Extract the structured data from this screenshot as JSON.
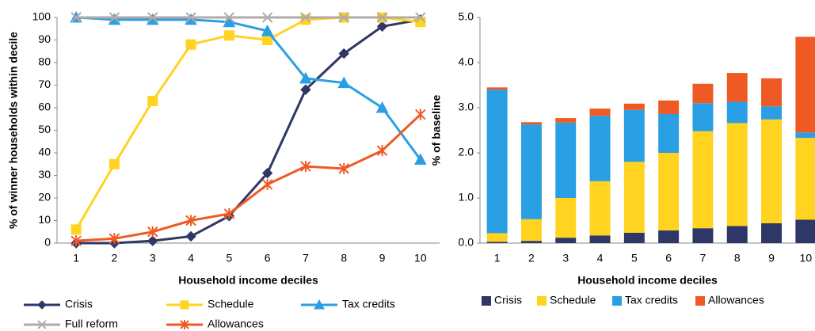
{
  "chart_data": [
    {
      "type": "line",
      "x_label": "Household income deciles",
      "y_label": "% of winner households within decile",
      "categories": [
        "1",
        "2",
        "3",
        "4",
        "5",
        "6",
        "7",
        "8",
        "9",
        "10"
      ],
      "ylim": [
        0,
        100
      ],
      "yticks": [
        0,
        10,
        20,
        30,
        40,
        50,
        60,
        70,
        80,
        90,
        100
      ],
      "grid": false,
      "series": [
        {
          "name": "Crisis",
          "color": "#2e3766",
          "marker": "diamond",
          "values": [
            0,
            0,
            1,
            3,
            12,
            31,
            68,
            84,
            96,
            99
          ]
        },
        {
          "name": "Schedule",
          "color": "#ffd320",
          "marker": "square",
          "values": [
            6,
            35,
            63,
            88,
            92,
            90,
            99,
            100,
            100,
            98
          ]
        },
        {
          "name": "Tax credits",
          "color": "#2a9fe3",
          "marker": "triangle",
          "values": [
            100,
            99,
            99,
            99,
            98,
            94,
            73,
            71,
            60,
            37
          ]
        },
        {
          "name": "Full reform",
          "color": "#b3aaaa",
          "marker": "x",
          "values": [
            100,
            100,
            100,
            100,
            100,
            100,
            100,
            100,
            100,
            100
          ]
        },
        {
          "name": "Allowances",
          "color": "#ef5a24",
          "marker": "star",
          "values": [
            1,
            2,
            5,
            10,
            13,
            26,
            34,
            33,
            41,
            57
          ]
        }
      ]
    },
    {
      "type": "stacked_bar",
      "x_label": "Household income deciles",
      "y_label": "% of baseline",
      "categories": [
        "1",
        "2",
        "3",
        "4",
        "5",
        "6",
        "7",
        "8",
        "9",
        "10"
      ],
      "ylim": [
        0,
        5
      ],
      "yticks": [
        {
          "value": 0,
          "label": "0.0"
        },
        {
          "value": 1,
          "label": "1.0"
        },
        {
          "value": 2,
          "label": "2.0"
        },
        {
          "value": 3,
          "label": "3.0"
        },
        {
          "value": 4,
          "label": "4.0"
        },
        {
          "value": 5,
          "label": "5.0"
        }
      ],
      "series": [
        {
          "name": "Crisis",
          "color": "#2e3766",
          "values": [
            0.03,
            0.05,
            0.12,
            0.17,
            0.23,
            0.28,
            0.33,
            0.38,
            0.44,
            0.52
          ]
        },
        {
          "name": "Schedule",
          "color": "#ffd320",
          "values": [
            0.19,
            0.48,
            0.88,
            1.2,
            1.57,
            1.72,
            2.15,
            2.28,
            2.3,
            1.81
          ]
        },
        {
          "name": "Tax credits",
          "color": "#2a9fe3",
          "values": [
            3.18,
            2.1,
            1.67,
            1.45,
            1.15,
            0.86,
            0.62,
            0.47,
            0.29,
            0.12
          ]
        },
        {
          "name": "Allowances",
          "color": "#ef5a24",
          "values": [
            0.05,
            0.05,
            0.1,
            0.16,
            0.14,
            0.3,
            0.43,
            0.64,
            0.62,
            2.12
          ]
        }
      ]
    }
  ]
}
